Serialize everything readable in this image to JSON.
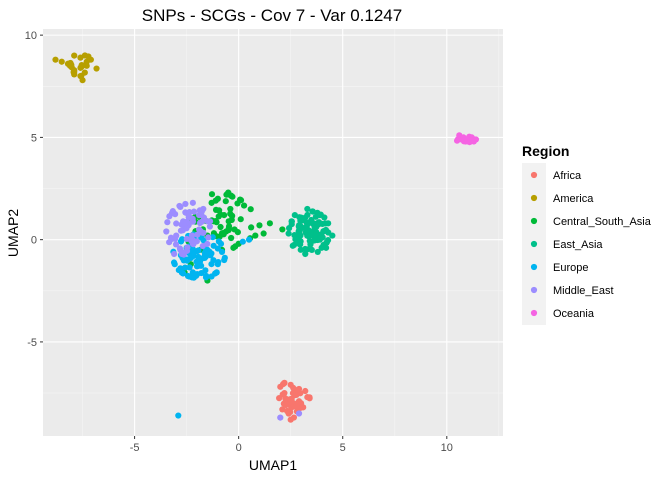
{
  "chart_data": {
    "type": "scatter",
    "title": "SNPs - SCGs - Cov 7 - Var 0.1247",
    "xlabel": "UMAP1",
    "ylabel": "UMAP2",
    "xlim": [
      -9.4,
      12.7
    ],
    "ylim": [
      -9.6,
      10.3
    ],
    "x_ticks": [
      -5,
      0,
      5,
      10
    ],
    "x_tick_labels": [
      "-5",
      "0",
      "5",
      "10"
    ],
    "y_ticks": [
      -5,
      0,
      5,
      10
    ],
    "y_tick_labels": [
      "-5",
      "0",
      "5",
      "10"
    ],
    "grid": true,
    "legend": {
      "title": "Region",
      "placement": "right"
    },
    "series": [
      {
        "name": "Africa",
        "color": "#F8766D",
        "center": [
          2.6,
          -7.8
        ],
        "spread": [
          0.45,
          0.5
        ],
        "points": [
          [
            2.2,
            -7.0
          ],
          [
            2.5,
            -7.1
          ],
          [
            2.9,
            -7.3
          ],
          [
            3.2,
            -7.4
          ],
          [
            3.3,
            -7.7
          ],
          [
            2.7,
            -7.6
          ],
          [
            2.3,
            -7.8
          ],
          [
            2.6,
            -8.1
          ],
          [
            3.0,
            -8.0
          ],
          [
            2.8,
            -8.4
          ],
          [
            2.4,
            -8.5
          ],
          [
            2.1,
            -8.3
          ],
          [
            2.5,
            -8.8
          ],
          [
            3.1,
            -8.2
          ],
          [
            2.2,
            -7.5
          ],
          [
            2.9,
            -7.9
          ]
        ]
      },
      {
        "name": "America",
        "color": "#B79F00",
        "center": [
          -7.7,
          8.5
        ],
        "spread": [
          0.5,
          0.3
        ],
        "points": [
          [
            -8.8,
            8.8
          ],
          [
            -8.5,
            8.7
          ],
          [
            -8.2,
            8.6
          ],
          [
            -7.9,
            9.0
          ],
          [
            -7.6,
            8.9
          ],
          [
            -7.3,
            8.7
          ],
          [
            -7.1,
            8.8
          ],
          [
            -7.6,
            8.4
          ],
          [
            -7.9,
            8.2
          ],
          [
            -7.6,
            8.0
          ],
          [
            -7.5,
            7.8
          ],
          [
            -8.1,
            8.5
          ],
          [
            -7.3,
            8.5
          ]
        ]
      },
      {
        "name": "Central_South_Asia",
        "color": "#00BA38",
        "center": [
          -1.0,
          0.8
        ],
        "spread": [
          1.0,
          0.8
        ],
        "points": [
          [
            -0.5,
            2.3
          ],
          [
            -0.3,
            2.1
          ],
          [
            -1.0,
            2.0
          ],
          [
            -1.3,
            1.8
          ],
          [
            -0.4,
            1.5
          ],
          [
            -0.7,
            1.2
          ],
          [
            0.1,
            1.0
          ],
          [
            -0.2,
            0.5
          ],
          [
            0.6,
            0.6
          ],
          [
            1.0,
            0.7
          ],
          [
            1.5,
            0.8
          ],
          [
            2.1,
            0.5
          ],
          [
            1.2,
            0.3
          ],
          [
            0.8,
            0.2
          ],
          [
            0.0,
            -0.2
          ],
          [
            -0.6,
            0.4
          ],
          [
            -1.2,
            0.9
          ],
          [
            -1.8,
            1.4
          ],
          [
            -2.1,
            1.1
          ],
          [
            -1.5,
            0.2
          ],
          [
            -1.6,
            -0.6
          ],
          [
            -2.3,
            -1.2
          ],
          [
            -2.6,
            -1.6
          ],
          [
            -1.5,
            -2.0
          ],
          [
            -0.8,
            -0.5
          ]
        ]
      },
      {
        "name": "East_Asia",
        "color": "#00C08B",
        "center": [
          3.4,
          0.4
        ],
        "spread": [
          0.55,
          0.55
        ],
        "points": [
          [
            2.7,
            1.2
          ],
          [
            3.3,
            1.5
          ],
          [
            3.9,
            1.2
          ],
          [
            4.3,
            0.8
          ],
          [
            4.5,
            0.2
          ],
          [
            4.2,
            -0.4
          ],
          [
            3.8,
            -0.6
          ],
          [
            3.2,
            -0.7
          ],
          [
            2.6,
            -0.3
          ],
          [
            2.4,
            0.3
          ],
          [
            2.9,
            0.7
          ],
          [
            3.4,
            0.2
          ],
          [
            3.6,
            0.8
          ],
          [
            2.9,
            -0.1
          ],
          [
            3.9,
            0.0
          ]
        ]
      },
      {
        "name": "Europe",
        "color": "#00B4F0",
        "center": [
          -1.9,
          -0.8
        ],
        "spread": [
          0.7,
          0.6
        ],
        "points": [
          [
            -2.8,
            -1.4
          ],
          [
            -2.2,
            -1.6
          ],
          [
            -1.6,
            -1.5
          ],
          [
            -1.0,
            -1.2
          ],
          [
            -0.8,
            -0.6
          ],
          [
            -1.2,
            -0.3
          ],
          [
            -1.8,
            0.1
          ],
          [
            -2.5,
            -0.4
          ],
          [
            -2.3,
            -0.9
          ],
          [
            -1.7,
            -0.9
          ],
          [
            -1.3,
            -1.8
          ],
          [
            -2.0,
            -1.3
          ],
          [
            -2.7,
            -0.8
          ],
          [
            0.2,
            -0.1
          ],
          [
            0.5,
            0.0
          ],
          [
            -2.9,
            -8.6
          ],
          [
            -1.5,
            -0.5
          ]
        ]
      },
      {
        "name": "Middle_East",
        "color": "#9C8DFF",
        "center": [
          -2.4,
          0.5
        ],
        "spread": [
          0.6,
          0.7
        ],
        "points": [
          [
            -3.2,
            1.3
          ],
          [
            -2.8,
            1.6
          ],
          [
            -2.2,
            1.8
          ],
          [
            -1.7,
            1.5
          ],
          [
            -1.5,
            0.9
          ],
          [
            -1.9,
            0.5
          ],
          [
            -2.5,
            0.7
          ],
          [
            -3.0,
            0.2
          ],
          [
            -2.8,
            -0.5
          ],
          [
            -2.2,
            -0.2
          ],
          [
            -1.9,
            1.2
          ],
          [
            -2.4,
            1.1
          ],
          [
            -3.1,
            -0.7
          ],
          [
            2.0,
            -8.7
          ],
          [
            2.9,
            -8.5
          ]
        ]
      },
      {
        "name": "Oceania",
        "color": "#F564E3",
        "center": [
          10.9,
          4.9
        ],
        "spread": [
          0.25,
          0.08
        ],
        "points": [
          [
            10.6,
            5.1
          ],
          [
            10.8,
            5.0
          ],
          [
            11.0,
            4.9
          ],
          [
            11.2,
            5.0
          ],
          [
            11.4,
            4.9
          ],
          [
            10.9,
            4.8
          ],
          [
            11.3,
            4.8
          ],
          [
            10.7,
            4.9
          ]
        ]
      }
    ]
  }
}
